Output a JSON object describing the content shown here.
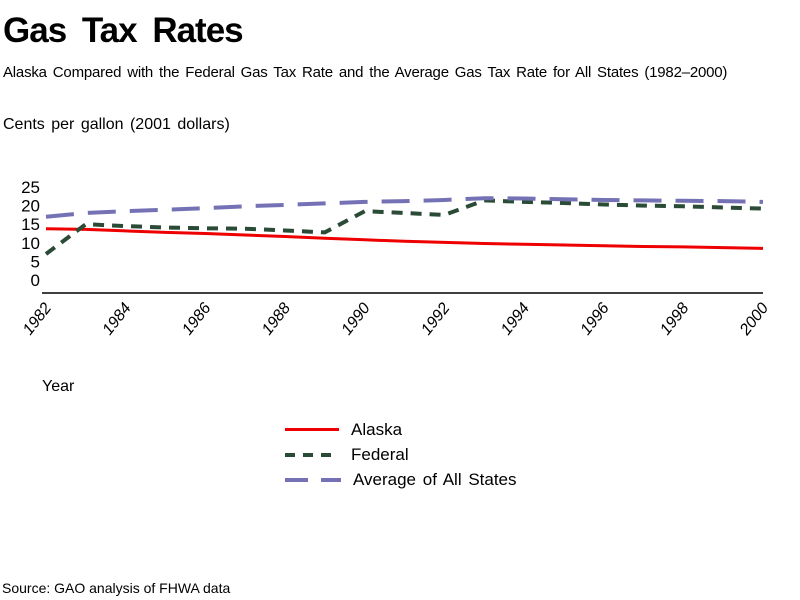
{
  "page": {
    "title": "Gas Tax Rates",
    "subtitle": "Alaska Compared with the Federal Gas Tax Rate and the Average Gas Tax Rate for All States (1982–2000)",
    "y_axis_title": "Cents per gallon (2001 dollars)",
    "x_axis_title": "Year",
    "source": "Source: GAO analysis of FHWA data"
  },
  "chart_data": {
    "type": "line",
    "title": "Gas Tax Rates",
    "subtitle": "Alaska Compared with the Federal Gas Tax Rate and the Average Gas Tax Rate for All States (1982–2000)",
    "ylabel": "Cents per gallon (2001 dollars)",
    "xlabel": "Year",
    "x": [
      1982,
      1983,
      1984,
      1985,
      1986,
      1987,
      1988,
      1989,
      1990,
      1991,
      1992,
      1993,
      1994,
      1995,
      1996,
      1997,
      1998,
      1999,
      2000
    ],
    "x_tick_labels": [
      "1982",
      "1984",
      "1986",
      "1988",
      "1990",
      "1992",
      "1994",
      "1996",
      "1998",
      "2000"
    ],
    "y_ticks": [
      0,
      5,
      10,
      15,
      20,
      25
    ],
    "ylim": [
      0,
      25
    ],
    "grid": false,
    "legend_position": "bottom-center",
    "axis_color": "#000000",
    "series": [
      {
        "name": "Alaska",
        "color": "#ee0000",
        "line_style": "solid",
        "values": [
          13.8,
          13.6,
          13.2,
          12.8,
          12.5,
          12.1,
          11.7,
          11.2,
          10.8,
          10.4,
          10.1,
          9.8,
          9.6,
          9.4,
          9.2,
          9.0,
          8.9,
          8.7,
          8.5
        ]
      },
      {
        "name": "Federal",
        "color": "#2a4b36",
        "line_style": "dashed",
        "values": [
          7.0,
          15.0,
          14.5,
          14.1,
          13.9,
          13.8,
          13.3,
          12.8,
          18.5,
          18.0,
          17.5,
          21.4,
          21.0,
          20.7,
          20.3,
          20.0,
          19.8,
          19.5,
          19.2
        ]
      },
      {
        "name": "Average of All States",
        "color": "#7472b5",
        "line_style": "long-dash",
        "values": [
          17.0,
          18.0,
          18.5,
          18.9,
          19.3,
          19.8,
          20.2,
          20.6,
          21.0,
          21.2,
          21.5,
          22.0,
          21.9,
          21.7,
          21.5,
          21.4,
          21.3,
          21.2,
          21.0
        ]
      }
    ],
    "source_note": "Source: GAO analysis of FHWA data"
  }
}
